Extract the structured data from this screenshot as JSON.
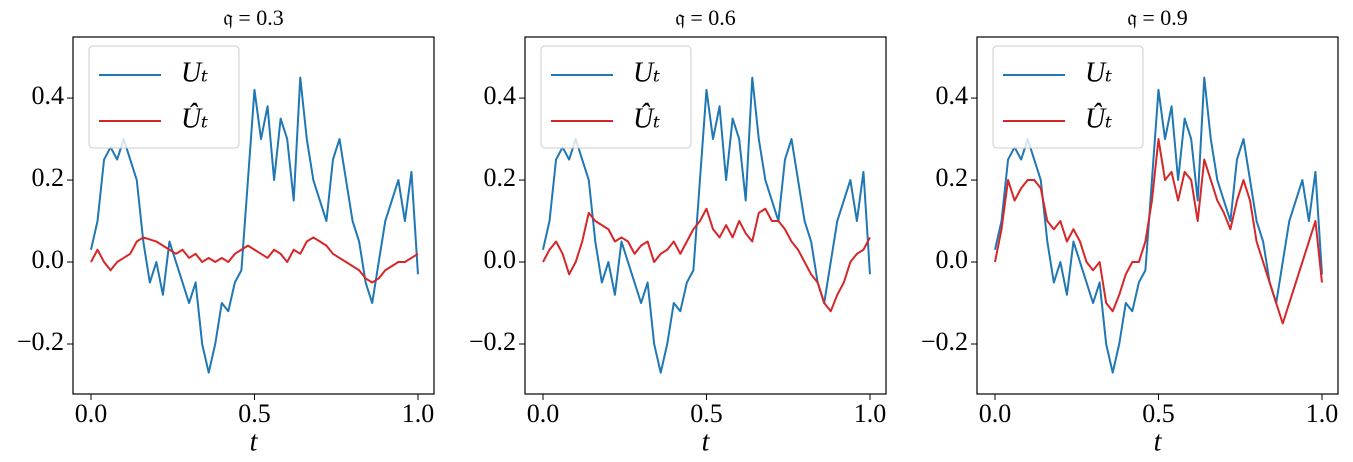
{
  "chart_data": [
    {
      "type": "line",
      "title": "𝔮 = 0.3",
      "x_label": "t",
      "legend": "upper left",
      "xlim": [
        -0.055,
        1.049
      ],
      "ylim": [
        -0.322,
        0.549
      ],
      "xticks": [
        {
          "value": 0,
          "label": "0.0"
        },
        {
          "value": 0.5,
          "label": "0.5"
        },
        {
          "value": 1,
          "label": "1.0"
        }
      ],
      "yticks": [
        {
          "value": -0.2,
          "label": "−0.2"
        },
        {
          "value": 0,
          "label": "0.0"
        },
        {
          "value": 0.2,
          "label": "0.2"
        },
        {
          "value": 0.4,
          "label": "0.4"
        }
      ],
      "x": [
        0,
        0.02,
        0.04,
        0.06,
        0.08,
        0.1,
        0.12,
        0.14,
        0.16,
        0.18,
        0.2,
        0.22,
        0.24,
        0.26,
        0.28,
        0.3,
        0.32,
        0.34,
        0.36,
        0.38,
        0.4,
        0.42,
        0.44,
        0.46,
        0.48,
        0.5,
        0.52,
        0.54,
        0.56,
        0.58,
        0.6,
        0.62,
        0.64,
        0.66,
        0.68,
        0.7,
        0.72,
        0.74,
        0.76,
        0.78,
        0.8,
        0.82,
        0.84,
        0.86,
        0.88,
        0.9,
        0.92,
        0.94,
        0.96,
        0.98,
        1
      ],
      "series": [
        {
          "name": "Uₜ",
          "color": "#1f77b4",
          "values": [
            0.03,
            0.1,
            0.25,
            0.28,
            0.25,
            0.3,
            0.25,
            0.2,
            0.05,
            -0.05,
            0.0,
            -0.08,
            0.05,
            0.0,
            -0.05,
            -0.1,
            -0.05,
            -0.2,
            -0.27,
            -0.2,
            -0.1,
            -0.12,
            -0.05,
            -0.02,
            0.2,
            0.42,
            0.3,
            0.38,
            0.2,
            0.35,
            0.3,
            0.15,
            0.45,
            0.3,
            0.2,
            0.15,
            0.1,
            0.25,
            0.3,
            0.2,
            0.1,
            0.05,
            -0.05,
            -0.1,
            0.0,
            0.1,
            0.15,
            0.2,
            0.1,
            0.22,
            -0.03
          ]
        },
        {
          "name": "Ûₜ",
          "color": "#d62728",
          "values": [
            0,
            0.03,
            0.0,
            -0.02,
            0.0,
            0.01,
            0.02,
            0.05,
            0.06,
            0.055,
            0.05,
            0.04,
            0.03,
            0.02,
            0.03,
            0.01,
            0.02,
            0.0,
            0.01,
            0.0,
            0.01,
            0.0,
            0.02,
            0.03,
            0.04,
            0.03,
            0.02,
            0.01,
            0.03,
            0.02,
            0.0,
            0.03,
            0.02,
            0.05,
            0.06,
            0.05,
            0.04,
            0.02,
            0.01,
            0.0,
            -0.01,
            -0.02,
            -0.04,
            -0.05,
            -0.04,
            -0.02,
            -0.01,
            0.0,
            0.0,
            0.01,
            0.02
          ]
        }
      ]
    },
    {
      "type": "line",
      "title": "𝔮 = 0.6",
      "x_label": "t",
      "legend": "upper left",
      "xlim": [
        -0.055,
        1.049
      ],
      "ylim": [
        -0.322,
        0.549
      ],
      "xticks": [
        {
          "value": 0,
          "label": "0.0"
        },
        {
          "value": 0.5,
          "label": "0.5"
        },
        {
          "value": 1,
          "label": "1.0"
        }
      ],
      "yticks": [
        {
          "value": -0.2,
          "label": "−0.2"
        },
        {
          "value": 0,
          "label": "0.0"
        },
        {
          "value": 0.2,
          "label": "0.2"
        },
        {
          "value": 0.4,
          "label": "0.4"
        }
      ],
      "x": [
        0,
        0.02,
        0.04,
        0.06,
        0.08,
        0.1,
        0.12,
        0.14,
        0.16,
        0.18,
        0.2,
        0.22,
        0.24,
        0.26,
        0.28,
        0.3,
        0.32,
        0.34,
        0.36,
        0.38,
        0.4,
        0.42,
        0.44,
        0.46,
        0.48,
        0.5,
        0.52,
        0.54,
        0.56,
        0.58,
        0.6,
        0.62,
        0.64,
        0.66,
        0.68,
        0.7,
        0.72,
        0.74,
        0.76,
        0.78,
        0.8,
        0.82,
        0.84,
        0.86,
        0.88,
        0.9,
        0.92,
        0.94,
        0.96,
        0.98,
        1
      ],
      "series": [
        {
          "name": "Uₜ",
          "color": "#1f77b4",
          "values": [
            0.03,
            0.1,
            0.25,
            0.28,
            0.25,
            0.3,
            0.25,
            0.2,
            0.05,
            -0.05,
            0.0,
            -0.08,
            0.05,
            0.0,
            -0.05,
            -0.1,
            -0.05,
            -0.2,
            -0.27,
            -0.2,
            -0.1,
            -0.12,
            -0.05,
            -0.02,
            0.2,
            0.42,
            0.3,
            0.38,
            0.2,
            0.35,
            0.3,
            0.15,
            0.45,
            0.3,
            0.2,
            0.15,
            0.1,
            0.25,
            0.3,
            0.2,
            0.1,
            0.05,
            -0.05,
            -0.1,
            0.0,
            0.1,
            0.15,
            0.2,
            0.1,
            0.22,
            -0.03
          ]
        },
        {
          "name": "Ûₜ",
          "color": "#d62728",
          "values": [
            0,
            0.03,
            0.05,
            0.02,
            -0.03,
            0.0,
            0.05,
            0.12,
            0.1,
            0.09,
            0.08,
            0.05,
            0.06,
            0.05,
            0.02,
            0.04,
            0.05,
            0.0,
            0.02,
            0.03,
            0.05,
            0.02,
            0.05,
            0.08,
            0.1,
            0.13,
            0.08,
            0.06,
            0.09,
            0.06,
            0.1,
            0.07,
            0.05,
            0.12,
            0.13,
            0.1,
            0.1,
            0.08,
            0.05,
            0.03,
            0.0,
            -0.03,
            -0.05,
            -0.1,
            -0.12,
            -0.08,
            -0.05,
            0.0,
            0.02,
            0.03,
            0.06
          ]
        }
      ]
    },
    {
      "type": "line",
      "title": "𝔮 = 0.9",
      "x_label": "t",
      "legend": "upper left",
      "xlim": [
        -0.055,
        1.049
      ],
      "ylim": [
        -0.322,
        0.549
      ],
      "xticks": [
        {
          "value": 0,
          "label": "0.0"
        },
        {
          "value": 0.5,
          "label": "0.5"
        },
        {
          "value": 1,
          "label": "1.0"
        }
      ],
      "yticks": [
        {
          "value": -0.2,
          "label": "−0.2"
        },
        {
          "value": 0,
          "label": "0.0"
        },
        {
          "value": 0.2,
          "label": "0.2"
        },
        {
          "value": 0.4,
          "label": "0.4"
        }
      ],
      "x": [
        0,
        0.02,
        0.04,
        0.06,
        0.08,
        0.1,
        0.12,
        0.14,
        0.16,
        0.18,
        0.2,
        0.22,
        0.24,
        0.26,
        0.28,
        0.3,
        0.32,
        0.34,
        0.36,
        0.38,
        0.4,
        0.42,
        0.44,
        0.46,
        0.48,
        0.5,
        0.52,
        0.54,
        0.56,
        0.58,
        0.6,
        0.62,
        0.64,
        0.66,
        0.68,
        0.7,
        0.72,
        0.74,
        0.76,
        0.78,
        0.8,
        0.82,
        0.84,
        0.86,
        0.88,
        0.9,
        0.92,
        0.94,
        0.96,
        0.98,
        1
      ],
      "series": [
        {
          "name": "Uₜ",
          "color": "#1f77b4",
          "values": [
            0.03,
            0.1,
            0.25,
            0.28,
            0.25,
            0.3,
            0.25,
            0.2,
            0.05,
            -0.05,
            0.0,
            -0.08,
            0.05,
            0.0,
            -0.05,
            -0.1,
            -0.05,
            -0.2,
            -0.27,
            -0.2,
            -0.1,
            -0.12,
            -0.05,
            -0.02,
            0.2,
            0.42,
            0.3,
            0.38,
            0.2,
            0.35,
            0.3,
            0.15,
            0.45,
            0.3,
            0.2,
            0.15,
            0.1,
            0.25,
            0.3,
            0.2,
            0.1,
            0.05,
            -0.05,
            -0.1,
            0.0,
            0.1,
            0.15,
            0.2,
            0.1,
            0.22,
            -0.03
          ]
        },
        {
          "name": "Ûₜ",
          "color": "#d62728",
          "values": [
            0,
            0.08,
            0.2,
            0.15,
            0.18,
            0.2,
            0.2,
            0.18,
            0.1,
            0.08,
            0.1,
            0.05,
            0.08,
            0.05,
            0.0,
            -0.02,
            0.0,
            -0.1,
            -0.12,
            -0.08,
            -0.03,
            0.0,
            0.0,
            0.05,
            0.15,
            0.3,
            0.2,
            0.22,
            0.15,
            0.22,
            0.2,
            0.1,
            0.25,
            0.2,
            0.15,
            0.12,
            0.08,
            0.15,
            0.2,
            0.15,
            0.05,
            0.0,
            -0.05,
            -0.1,
            -0.15,
            -0.1,
            -0.05,
            0.0,
            0.05,
            0.1,
            -0.05
          ]
        }
      ]
    }
  ]
}
